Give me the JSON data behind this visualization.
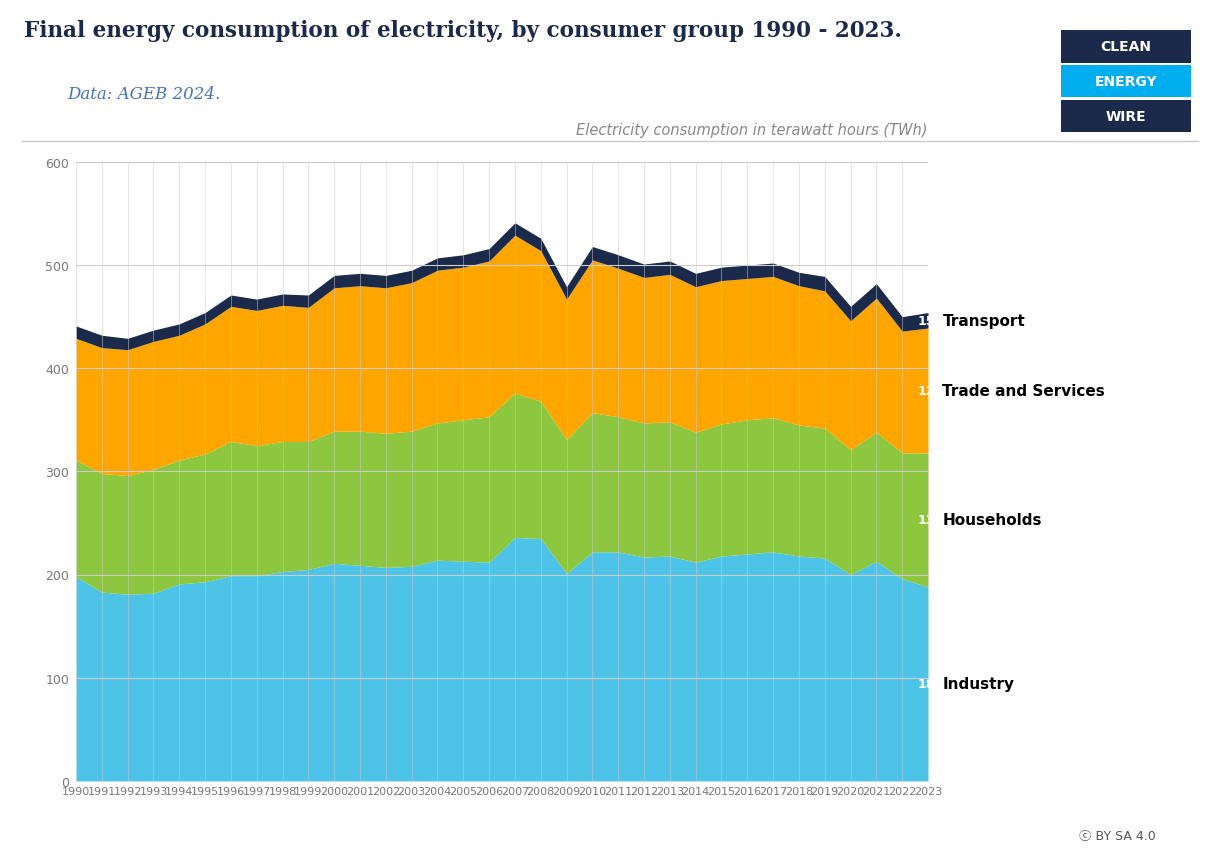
{
  "years": [
    1990,
    1991,
    1992,
    1993,
    1994,
    1995,
    1996,
    1997,
    1998,
    1999,
    2000,
    2001,
    2002,
    2003,
    2004,
    2005,
    2006,
    2007,
    2008,
    2009,
    2010,
    2011,
    2012,
    2013,
    2014,
    2015,
    2016,
    2017,
    2018,
    2019,
    2020,
    2021,
    2022,
    2023
  ],
  "industry": [
    198,
    183,
    181,
    182,
    191,
    193,
    199,
    199,
    203,
    205,
    211,
    209,
    207,
    208,
    214,
    213,
    212,
    236,
    235,
    201,
    222,
    222,
    217,
    218,
    212,
    218,
    220,
    222,
    218,
    216,
    200,
    213,
    196,
    188
  ],
  "households": [
    113,
    115,
    115,
    120,
    120,
    124,
    130,
    126,
    126,
    124,
    128,
    130,
    130,
    131,
    133,
    137,
    141,
    140,
    133,
    130,
    135,
    131,
    130,
    130,
    126,
    128,
    130,
    130,
    127,
    126,
    121,
    125,
    122,
    130
  ],
  "trade_services": [
    118,
    122,
    122,
    124,
    121,
    126,
    131,
    131,
    132,
    130,
    139,
    141,
    141,
    144,
    148,
    148,
    151,
    153,
    146,
    136,
    148,
    144,
    141,
    143,
    141,
    139,
    137,
    137,
    135,
    133,
    125,
    130,
    118,
    121
  ],
  "transport": [
    12,
    12,
    11,
    11,
    11,
    11,
    11,
    11,
    11,
    12,
    12,
    12,
    12,
    12,
    12,
    12,
    12,
    12,
    12,
    12,
    13,
    13,
    13,
    13,
    13,
    13,
    13,
    13,
    13,
    14,
    14,
    14,
    14,
    15
  ],
  "color_industry": "#4DC3E8",
  "color_households": "#8DC63F",
  "color_trade": "#FFA500",
  "color_transport": "#1B2A4A",
  "title": "Final energy consumption of electricity, by consumer group 1990 - 2023.",
  "subtitle": "Data: AGEB 2024.",
  "ylabel": "Electricity consumption in terawatt hours (TWh)",
  "yticks": [
    0,
    100,
    200,
    300,
    400,
    500,
    600
  ],
  "title_color": "#1B2A4A",
  "subtitle_color": "#4472C4",
  "grid_color": "#CCCCCC",
  "logo_clean_bg": "#1B2A4A",
  "logo_energy_bg": "#00AEEF",
  "logo_wire_bg": "#1B2A4A",
  "val_industry_2023": 188,
  "val_households_2023": 130,
  "val_trade_2023": 121,
  "val_transport_2023": 15,
  "bg_color": "#FFFFFF"
}
